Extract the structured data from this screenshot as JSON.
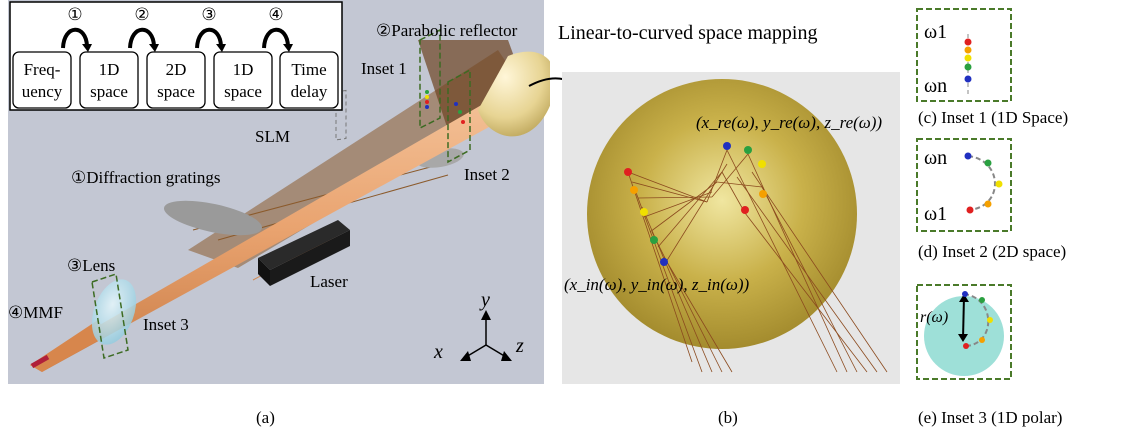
{
  "panel_a": {
    "flow_steps": [
      {
        "num": "①",
        "box": [
          "Freq-",
          "uency"
        ]
      },
      {
        "num": "②",
        "box": [
          "1D",
          "space"
        ]
      },
      {
        "num": "③",
        "box": [
          "2D",
          "space"
        ]
      },
      {
        "num": "④",
        "box": [
          "1D",
          "space"
        ]
      },
      {
        "num": "",
        "box": [
          "Time",
          "delay"
        ]
      }
    ],
    "labels": {
      "parabolic_reflector": "②Parabolic reflector",
      "inset1": "Inset 1",
      "inset2": "Inset 2",
      "inset3": "Inset 3",
      "slm": "SLM",
      "gratings": "①Diffraction gratings",
      "lens": "③Lens",
      "laser": "Laser",
      "mmf": "④MMF",
      "axis_x": "x",
      "axis_y": "y",
      "axis_z": "z"
    },
    "caption": "(a)"
  },
  "panel_b": {
    "title": "Linear-to-curved space mapping",
    "label_re": "(x_re(ω), y_re(ω), z_re(ω))",
    "label_in": "(x_in(ω), y_in(ω), z_in(ω))",
    "caption": "(b)"
  },
  "panel_c": {
    "omega_top": "ω1",
    "omega_bottom": "ωn",
    "caption": "(c) Inset 1 (1D Space)"
  },
  "panel_d": {
    "omega_top": "ωn",
    "omega_bottom": "ω1",
    "caption": "(d) Inset 2 (2D space)"
  },
  "panel_e": {
    "radius_label": "r(ω)",
    "caption": "(e) Inset 3 (1D polar)"
  },
  "colors": {
    "background_gray": "#c3c7d3",
    "beam_copper": "#e9a36f",
    "beam_brown": "#8b5a2b",
    "reflector_gold": "#d9c57a",
    "inset_border": "#4a7a2a",
    "dot_red": "#e02020",
    "dot_orange": "#f5a000",
    "dot_yellow": "#f0e000",
    "dot_green": "#2aa040",
    "dot_blue": "#2030c0"
  }
}
